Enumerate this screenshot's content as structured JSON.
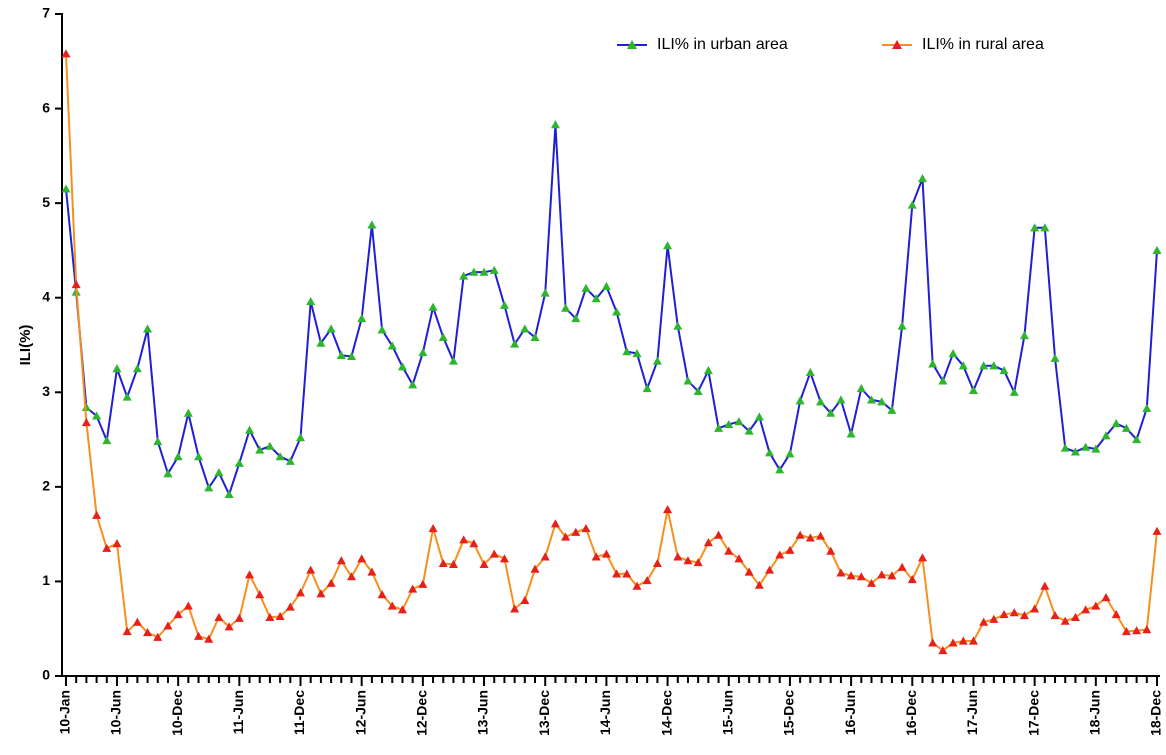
{
  "chart_data": {
    "type": "line",
    "y_label": "ILI(%)",
    "categories": [
      "10-Jan",
      null,
      null,
      null,
      null,
      "10-Jun",
      null,
      null,
      null,
      null,
      null,
      "10-Dec",
      null,
      null,
      null,
      null,
      null,
      "11-Jun",
      null,
      null,
      null,
      null,
      null,
      "11-Dec",
      null,
      null,
      null,
      null,
      null,
      "12-Jun",
      null,
      null,
      null,
      null,
      null,
      "12-Dec",
      null,
      null,
      null,
      null,
      null,
      "13-Jun",
      null,
      null,
      null,
      null,
      null,
      "13-Dec",
      null,
      null,
      null,
      null,
      null,
      "14-Jun",
      null,
      null,
      null,
      null,
      null,
      "14-Dec",
      null,
      null,
      null,
      null,
      null,
      "15-Jun",
      null,
      null,
      null,
      null,
      null,
      "15-Dec",
      null,
      null,
      null,
      null,
      null,
      "16-Jun",
      null,
      null,
      null,
      null,
      null,
      "16-Dec",
      null,
      null,
      null,
      null,
      null,
      "17-Jun",
      null,
      null,
      null,
      null,
      null,
      "17-Dec",
      null,
      null,
      null,
      null,
      null,
      "18-Jun",
      null,
      null,
      null,
      null,
      null,
      "18-Dec"
    ],
    "series": [
      {
        "name": "ILI% in urban area",
        "color": "#1f1fd6",
        "marker_color": "#2db52d",
        "values": [
          5.15,
          4.06,
          2.84,
          2.75,
          2.49,
          3.25,
          2.95,
          3.25,
          3.67,
          2.48,
          2.14,
          2.32,
          2.78,
          2.32,
          1.99,
          2.15,
          1.92,
          2.25,
          2.6,
          2.39,
          2.43,
          2.32,
          2.27,
          2.52,
          3.96,
          3.52,
          3.67,
          3.39,
          3.38,
          3.78,
          4.77,
          3.66,
          3.49,
          3.27,
          3.08,
          3.42,
          3.9,
          3.58,
          3.33,
          4.23,
          4.27,
          4.27,
          4.29,
          3.92,
          3.51,
          3.67,
          3.58,
          4.05,
          5.83,
          3.89,
          3.78,
          4.1,
          3.99,
          4.12,
          3.85,
          3.43,
          3.41,
          3.04,
          3.33,
          4.55,
          3.7,
          3.12,
          3.01,
          3.23,
          2.62,
          2.66,
          2.69,
          2.59,
          2.74,
          2.36,
          2.18,
          2.35,
          2.91,
          3.21,
          2.9,
          2.78,
          2.92,
          2.56,
          3.04,
          2.92,
          2.9,
          2.81,
          3.7,
          4.98,
          5.26,
          3.3,
          3.12,
          3.41,
          3.28,
          3.02,
          3.28,
          3.28,
          3.23,
          3.0,
          3.6,
          4.74,
          4.74,
          3.36,
          2.41,
          2.37,
          2.42,
          2.4,
          2.54,
          2.67,
          2.62,
          2.5,
          2.83,
          4.5
        ]
      },
      {
        "name": "ILI% in rural area",
        "color": "#f5901e",
        "marker_color": "#e8201a",
        "values": [
          6.58,
          4.14,
          2.68,
          1.7,
          1.35,
          1.4,
          0.47,
          0.57,
          0.46,
          0.41,
          0.53,
          0.65,
          0.74,
          0.42,
          0.39,
          0.62,
          0.52,
          0.61,
          1.07,
          0.86,
          0.62,
          0.63,
          0.73,
          0.88,
          1.12,
          0.87,
          0.98,
          1.22,
          1.05,
          1.24,
          1.1,
          0.86,
          0.74,
          0.7,
          0.92,
          0.97,
          1.56,
          1.19,
          1.18,
          1.44,
          1.4,
          1.18,
          1.29,
          1.24,
          0.71,
          0.8,
          1.13,
          1.26,
          1.61,
          1.47,
          1.52,
          1.56,
          1.26,
          1.29,
          1.08,
          1.08,
          0.95,
          1.01,
          1.19,
          1.76,
          1.26,
          1.22,
          1.2,
          1.41,
          1.49,
          1.32,
          1.24,
          1.1,
          0.96,
          1.12,
          1.28,
          1.33,
          1.49,
          1.46,
          1.48,
          1.32,
          1.09,
          1.06,
          1.05,
          0.98,
          1.07,
          1.06,
          1.15,
          1.02,
          1.25,
          0.35,
          0.27,
          0.35,
          0.37,
          0.37,
          0.57,
          0.6,
          0.65,
          0.67,
          0.64,
          0.71,
          0.95,
          0.64,
          0.58,
          0.62,
          0.7,
          0.74,
          0.83,
          0.65,
          0.47,
          0.48,
          0.49,
          1.53
        ]
      }
    ],
    "ylim": [
      0,
      7
    ],
    "yticks": [
      0,
      1,
      2,
      3,
      4,
      5,
      6,
      7
    ],
    "grid": false,
    "legend": "top-right"
  }
}
